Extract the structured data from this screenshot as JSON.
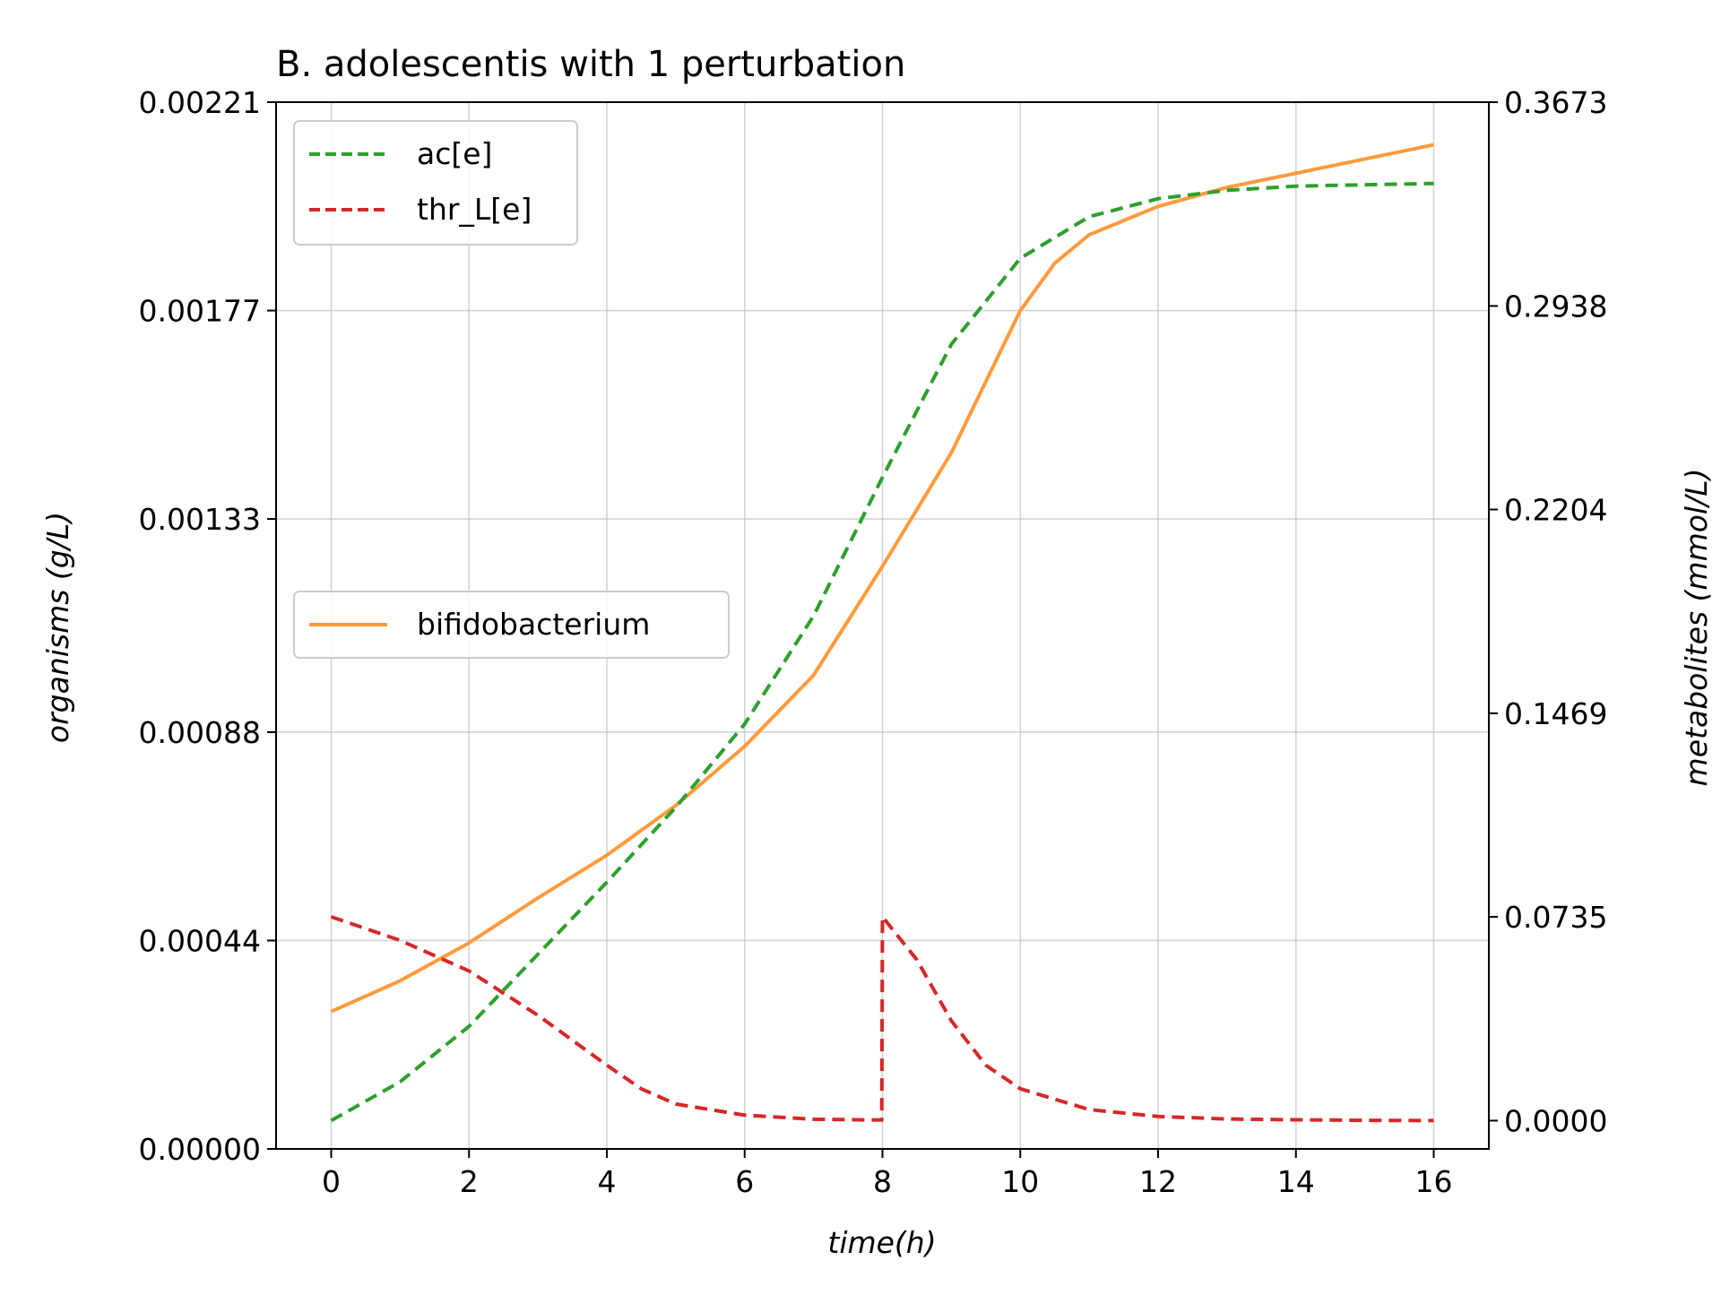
{
  "chart_data": {
    "type": "line",
    "title": "B. adolescentis with 1 perturbation",
    "xlabel": "time(h)",
    "ylabel_left": "organisms (g/L)",
    "ylabel_right": "metabolites (mmol/L)",
    "xlim": [
      -0.8,
      16.8
    ],
    "ylim_left": [
      0.0,
      0.00221
    ],
    "ylim_right": [
      -0.0102,
      0.3673
    ],
    "x_ticks": [
      "0",
      "2",
      "4",
      "6",
      "8",
      "10",
      "12",
      "14",
      "16"
    ],
    "y_left_ticks": [
      "0.00000",
      "0.00044",
      "0.00088",
      "0.00133",
      "0.00177",
      "0.00221"
    ],
    "y_right_ticks": [
      "0.0000",
      "0.0735",
      "0.1469",
      "0.2204",
      "0.2938",
      "0.3673"
    ],
    "grid": true,
    "legend_metabolites": {
      "position": "upper-left",
      "entries": [
        "ac[e]",
        "thr_L[e]"
      ]
    },
    "legend_organisms": {
      "position": "center-left",
      "entries": [
        "bifidobacterium"
      ]
    },
    "series": [
      {
        "name": "bifidobacterium",
        "axis": "left",
        "color": "#ff9a3c",
        "style": "solid",
        "x": [
          0,
          1,
          2,
          3,
          4,
          5,
          6,
          7,
          8,
          9,
          9.5,
          10,
          10.5,
          11,
          12,
          13,
          14,
          15,
          16
        ],
        "y": [
          0.00029,
          0.000355,
          0.000435,
          0.00053,
          0.00062,
          0.000725,
          0.00085,
          0.001,
          0.00123,
          0.00147,
          0.00162,
          0.00177,
          0.00187,
          0.00193,
          0.00199,
          0.00203,
          0.00206,
          0.00209,
          0.00212
        ]
      },
      {
        "name": "ac[e]",
        "axis": "right",
        "color": "#2ca02c",
        "style": "dashed",
        "x": [
          0,
          1,
          2,
          3,
          4,
          5,
          6,
          7,
          8,
          8.5,
          9,
          10,
          11,
          12,
          13,
          14,
          15,
          16
        ],
        "y": [
          0.0,
          0.014,
          0.034,
          0.06,
          0.086,
          0.113,
          0.143,
          0.182,
          0.232,
          0.256,
          0.28,
          0.311,
          0.326,
          0.3325,
          0.3355,
          0.337,
          0.3375,
          0.338
        ]
      },
      {
        "name": "thr_L[e]",
        "axis": "right",
        "color": "#d62728",
        "style": "dashed",
        "x": [
          0,
          1,
          2,
          3,
          4,
          4.5,
          5,
          6,
          7,
          7.99,
          8.0,
          8.5,
          9,
          9.5,
          10,
          11,
          12,
          13,
          14,
          15,
          16
        ],
        "y": [
          0.0735,
          0.065,
          0.054,
          0.038,
          0.02,
          0.0115,
          0.006,
          0.002,
          0.0005,
          0.0002,
          0.0735,
          0.058,
          0.036,
          0.02,
          0.0115,
          0.004,
          0.0015,
          0.0006,
          0.0003,
          0.0001,
          0.0
        ]
      }
    ]
  }
}
